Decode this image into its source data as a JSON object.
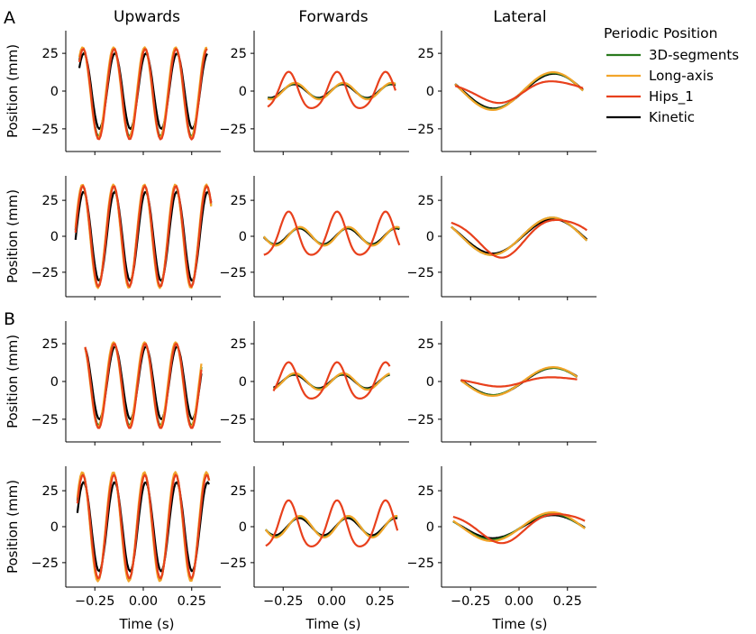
{
  "figure": {
    "panel_labels": [
      "A",
      "B"
    ],
    "column_titles": [
      "Upwards",
      "Forwards",
      "Lateral"
    ],
    "ylabel": "Position (mm)",
    "xlabel": "Time (s)",
    "legend": {
      "title": "Periodic Position",
      "placement": "top-right outside",
      "entries": [
        {
          "name": "3D-segments",
          "color": "#2a7a1e"
        },
        {
          "name": "Long-axis",
          "color": "#f2a52a"
        },
        {
          "name": "Hips_1",
          "color": "#e8401c"
        },
        {
          "name": "Kinetic",
          "color": "#000000"
        }
      ]
    }
  },
  "chart_data": {
    "type": "line",
    "layout": "4x3 grid of small multiples",
    "series_names": [
      "3D-segments",
      "Long-axis",
      "Hips_1",
      "Kinetic"
    ],
    "colors": {
      "3D-segments": "#2a7a1e",
      "Long-axis": "#f2a52a",
      "Hips_1": "#e8401c",
      "Kinetic": "#000000"
    },
    "draw_order": [
      "Kinetic",
      "3D-segments",
      "Long-axis",
      "Hips_1"
    ],
    "xlim": [
      -0.4,
      0.4
    ],
    "xticks": [
      -0.25,
      0.0,
      0.25
    ],
    "xtick_labels": [
      "−0.25",
      "0.00",
      "0.25"
    ],
    "grid": false,
    "panels": [
      {
        "row": 0,
        "col": 0,
        "group": "A",
        "title": "Upwards",
        "ylim": [
          -40,
          40
        ],
        "yticks": [
          -25,
          0,
          25
        ],
        "ytick_labels": [
          "−25",
          "0",
          "25"
        ],
        "x_range": [
          -0.33,
          0.33
        ],
        "series": [
          {
            "name": "3D-segments",
            "amp": 29,
            "freq": 6.25,
            "phase": 1.23,
            "offset": -1
          },
          {
            "name": "Long-axis",
            "amp": 30,
            "freq": 6.25,
            "phase": 1.3,
            "offset": -1
          },
          {
            "name": "Hips_1",
            "amp": 30,
            "freq": 6.25,
            "phase": 1.18,
            "offset": -2
          },
          {
            "name": "Kinetic",
            "amp": 25,
            "freq": 6.25,
            "phase": 1.05,
            "offset": 0
          }
        ]
      },
      {
        "row": 0,
        "col": 1,
        "group": "A",
        "title": "Forwards",
        "ylim": [
          -40,
          40
        ],
        "yticks": [
          -25,
          0,
          25
        ],
        "ytick_labels": [
          "−25",
          "0",
          "25"
        ],
        "x_range": [
          -0.33,
          0.33
        ],
        "series": [
          {
            "name": "3D-segments",
            "amp": 5,
            "freq": 4.0,
            "phase": 0.05,
            "offset": 0
          },
          {
            "name": "Long-axis",
            "amp": 5.5,
            "freq": 4.0,
            "phase": 0.05,
            "offset": 0
          },
          {
            "name": "Hips_1",
            "amp": 12,
            "freq": 4.0,
            "phase": 0.9,
            "offset": -1
          },
          {
            "name": "Kinetic",
            "amp": 4.5,
            "freq": 4.0,
            "phase": 0.15,
            "offset": 0
          }
        ]
      },
      {
        "row": 0,
        "col": 2,
        "group": "A",
        "title": "Lateral",
        "ylim": [
          -40,
          40
        ],
        "yticks": [
          -25,
          0,
          25
        ],
        "ytick_labels": [
          "−25",
          "0",
          "25"
        ],
        "x_range": [
          -0.33,
          0.33
        ],
        "series": [
          {
            "name": "3D-segments",
            "amp": 12,
            "freq": 1.6,
            "phase": -0.2,
            "offset": 0
          },
          {
            "name": "Long-axis",
            "amp": 12.5,
            "freq": 1.6,
            "phase": -0.2,
            "offset": 0
          },
          {
            "name": "Hips_1",
            "amp": 7,
            "freq": 1.6,
            "phase": -0.4,
            "offset": 0
          },
          {
            "name": "Kinetic",
            "amp": 11.5,
            "freq": 1.6,
            "phase": -0.25,
            "offset": 0
          }
        ]
      },
      {
        "row": 1,
        "col": 0,
        "group": "A",
        "title": "",
        "ylim": [
          -42,
          42
        ],
        "yticks": [
          -25,
          0,
          25
        ],
        "ytick_labels": [
          "−25",
          "0",
          "25"
        ],
        "x_range": [
          -0.35,
          0.35
        ],
        "series": [
          {
            "name": "3D-segments",
            "amp": 35,
            "freq": 6.25,
            "phase": 1.3,
            "offset": 0
          },
          {
            "name": "Long-axis",
            "amp": 36,
            "freq": 6.25,
            "phase": 1.35,
            "offset": 0
          },
          {
            "name": "Hips_1",
            "amp": 35,
            "freq": 6.25,
            "phase": 1.25,
            "offset": 0
          },
          {
            "name": "Kinetic",
            "amp": 31,
            "freq": 6.25,
            "phase": 1.1,
            "offset": 0
          }
        ]
      },
      {
        "row": 1,
        "col": 1,
        "group": "A",
        "title": "",
        "ylim": [
          -42,
          42
        ],
        "yticks": [
          -25,
          0,
          25
        ],
        "ytick_labels": [
          "−25",
          "0",
          "25"
        ],
        "x_range": [
          -0.35,
          0.35
        ],
        "series": [
          {
            "name": "3D-segments",
            "amp": 6,
            "freq": 4.0,
            "phase": -0.6,
            "offset": 0
          },
          {
            "name": "Long-axis",
            "amp": 6.5,
            "freq": 4.0,
            "phase": -0.6,
            "offset": 0
          },
          {
            "name": "Hips_1",
            "amp": 15,
            "freq": 4.0,
            "phase": 0.9,
            "offset": 0
          },
          {
            "name": "Kinetic",
            "amp": 5.5,
            "freq": 4.0,
            "phase": -0.5,
            "offset": 0
          }
        ]
      },
      {
        "row": 1,
        "col": 2,
        "group": "A",
        "title": "",
        "ylim": [
          -42,
          42
        ],
        "yticks": [
          -25,
          0,
          25
        ],
        "ytick_labels": [
          "−25",
          "0",
          "25"
        ],
        "x_range": [
          -0.35,
          0.35
        ],
        "series": [
          {
            "name": "3D-segments",
            "amp": 13,
            "freq": 1.6,
            "phase": -0.15,
            "offset": 0
          },
          {
            "name": "Long-axis",
            "amp": 13,
            "freq": 1.6,
            "phase": -0.15,
            "offset": 0
          },
          {
            "name": "Hips_1",
            "amp": 13,
            "freq": 1.6,
            "phase": -0.6,
            "offset": 0
          },
          {
            "name": "Kinetic",
            "amp": 12,
            "freq": 1.6,
            "phase": -0.2,
            "offset": 0
          }
        ]
      },
      {
        "row": 2,
        "col": 0,
        "group": "B",
        "title": "",
        "ylim": [
          -40,
          40
        ],
        "yticks": [
          -25,
          0,
          25
        ],
        "ytick_labels": [
          "−25",
          "0",
          "25"
        ],
        "x_range": [
          -0.3,
          0.3
        ],
        "series": [
          {
            "name": "3D-segments",
            "amp": 27,
            "freq": 6.25,
            "phase": 1.23,
            "offset": -2
          },
          {
            "name": "Long-axis",
            "amp": 28,
            "freq": 6.25,
            "phase": 1.3,
            "offset": -2
          },
          {
            "name": "Hips_1",
            "amp": 28,
            "freq": 6.25,
            "phase": 1.18,
            "offset": -3
          },
          {
            "name": "Kinetic",
            "amp": 24,
            "freq": 6.25,
            "phase": 1.05,
            "offset": -1
          }
        ]
      },
      {
        "row": 2,
        "col": 1,
        "group": "B",
        "title": "",
        "ylim": [
          -40,
          40
        ],
        "yticks": [
          -25,
          0,
          25
        ],
        "ytick_labels": [
          "−25",
          "0",
          "25"
        ],
        "x_range": [
          -0.3,
          0.3
        ],
        "series": [
          {
            "name": "3D-segments",
            "amp": 5,
            "freq": 4.0,
            "phase": 0.05,
            "offset": 0
          },
          {
            "name": "Long-axis",
            "amp": 5.5,
            "freq": 4.0,
            "phase": 0.05,
            "offset": 0
          },
          {
            "name": "Hips_1",
            "amp": 12,
            "freq": 4.0,
            "phase": 0.9,
            "offset": -1
          },
          {
            "name": "Kinetic",
            "amp": 4.5,
            "freq": 4.0,
            "phase": 0.15,
            "offset": 0
          }
        ]
      },
      {
        "row": 2,
        "col": 2,
        "group": "B",
        "title": "",
        "ylim": [
          -40,
          40
        ],
        "yticks": [
          -25,
          0,
          25
        ],
        "ytick_labels": [
          "−25",
          "0",
          "25"
        ],
        "x_range": [
          -0.3,
          0.3
        ],
        "series": [
          {
            "name": "3D-segments",
            "amp": 9,
            "freq": 1.6,
            "phase": -0.2,
            "offset": 0
          },
          {
            "name": "Long-axis",
            "amp": 9.5,
            "freq": 1.6,
            "phase": -0.2,
            "offset": 0
          },
          {
            "name": "Hips_1",
            "amp": 3,
            "freq": 1.6,
            "phase": -0.4,
            "offset": 0
          },
          {
            "name": "Kinetic",
            "amp": 9,
            "freq": 1.6,
            "phase": -0.25,
            "offset": 0
          }
        ]
      },
      {
        "row": 3,
        "col": 0,
        "group": "B",
        "title": "",
        "ylim": [
          -42,
          42
        ],
        "yticks": [
          -25,
          0,
          25
        ],
        "ytick_labels": [
          "−25",
          "0",
          "25"
        ],
        "x_range": [
          -0.34,
          0.34
        ],
        "series": [
          {
            "name": "3D-segments",
            "amp": 37,
            "freq": 6.25,
            "phase": 1.3,
            "offset": 0
          },
          {
            "name": "Long-axis",
            "amp": 38,
            "freq": 6.25,
            "phase": 1.35,
            "offset": 0
          },
          {
            "name": "Hips_1",
            "amp": 36,
            "freq": 6.25,
            "phase": 1.25,
            "offset": 0
          },
          {
            "name": "Kinetic",
            "amp": 31,
            "freq": 6.25,
            "phase": 1.1,
            "offset": 0
          }
        ]
      },
      {
        "row": 3,
        "col": 1,
        "group": "B",
        "title": "",
        "ylim": [
          -42,
          42
        ],
        "yticks": [
          -25,
          0,
          25
        ],
        "ytick_labels": [
          "−25",
          "0",
          "25"
        ],
        "x_range": [
          -0.34,
          0.34
        ],
        "series": [
          {
            "name": "3D-segments",
            "amp": 7,
            "freq": 4.0,
            "phase": -0.6,
            "offset": 0
          },
          {
            "name": "Long-axis",
            "amp": 7.5,
            "freq": 4.0,
            "phase": -0.6,
            "offset": 0
          },
          {
            "name": "Hips_1",
            "amp": 16,
            "freq": 4.0,
            "phase": 0.9,
            "offset": 0
          },
          {
            "name": "Kinetic",
            "amp": 6,
            "freq": 4.0,
            "phase": -0.5,
            "offset": 0
          }
        ]
      },
      {
        "row": 3,
        "col": 2,
        "group": "B",
        "title": "",
        "ylim": [
          -42,
          42
        ],
        "yticks": [
          -25,
          0,
          25
        ],
        "ytick_labels": [
          "−25",
          "0",
          "25"
        ],
        "x_range": [
          -0.34,
          0.34
        ],
        "series": [
          {
            "name": "3D-segments",
            "amp": 9,
            "freq": 1.6,
            "phase": -0.15,
            "offset": 0
          },
          {
            "name": "Long-axis",
            "amp": 10,
            "freq": 1.6,
            "phase": -0.15,
            "offset": 0
          },
          {
            "name": "Hips_1",
            "amp": 10,
            "freq": 1.6,
            "phase": -0.6,
            "offset": 0
          },
          {
            "name": "Kinetic",
            "amp": 8,
            "freq": 1.6,
            "phase": -0.2,
            "offset": 0
          }
        ]
      }
    ]
  }
}
